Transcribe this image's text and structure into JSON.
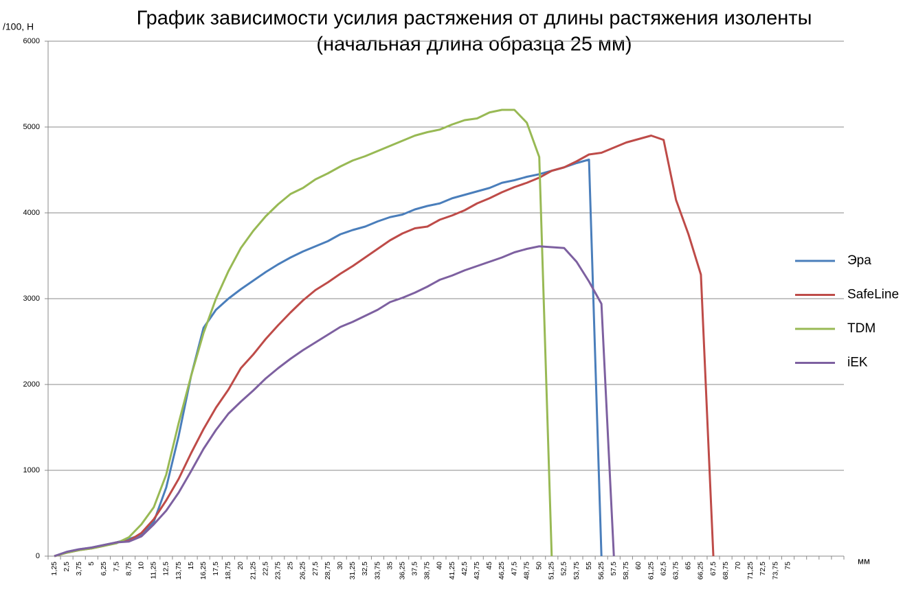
{
  "chart_data": {
    "type": "line",
    "title": [
      "График зависимости усилия растяжения от длины растяжения изоленты",
      "(начальная длина образца 25 мм)"
    ],
    "y_label": "/100, Н",
    "x_label": "мм",
    "categories": [
      "1,25",
      "2,5",
      "3,75",
      "5",
      "6,25",
      "7,5",
      "8,75",
      "10",
      "11,25",
      "12,5",
      "13,75",
      "15",
      "16,25",
      "17,5",
      "18,75",
      "20",
      "21,25",
      "22,5",
      "23,75",
      "25",
      "26,25",
      "27,5",
      "28,75",
      "30",
      "31,25",
      "32,5",
      "33,75",
      "35",
      "36,25",
      "37,5",
      "38,75",
      "40",
      "41,25",
      "42,5",
      "43,75",
      "45",
      "46,25",
      "47,5",
      "48,75",
      "50",
      "51,25",
      "52,5",
      "53,75",
      "55",
      "56,25",
      "57,5",
      "58,75",
      "60",
      "61,25",
      "62,5",
      "63,75",
      "65",
      "66,25",
      "67,5",
      "68,75",
      "70",
      "71,25",
      "72,5",
      "73,75",
      "75",
      null,
      null,
      null,
      null
    ],
    "ylim": [
      0,
      6000
    ],
    "yticks": [
      0,
      1000,
      2000,
      3000,
      4000,
      5000,
      6000
    ],
    "grid": true,
    "legend": "right",
    "series": [
      {
        "name": "Эра",
        "color": "#4a7ebb",
        "values": [
          0,
          50,
          80,
          100,
          130,
          160,
          200,
          250,
          400,
          800,
          1400,
          2100,
          2660,
          2870,
          3000,
          3110,
          3210,
          3310,
          3400,
          3480,
          3550,
          3610,
          3670,
          3750,
          3800,
          3840,
          3900,
          3950,
          3980,
          4040,
          4080,
          4110,
          4170,
          4210,
          4250,
          4290,
          4350,
          4380,
          4420,
          4450,
          4490,
          4530,
          4580,
          4620,
          0,
          null,
          null,
          null,
          null,
          null,
          null,
          null,
          null,
          null,
          null,
          null,
          null,
          null,
          null,
          null,
          null,
          null,
          null,
          null
        ]
      },
      {
        "name": "SafeLine",
        "color": "#be4b48",
        "values": [
          0,
          40,
          70,
          90,
          120,
          160,
          180,
          270,
          430,
          650,
          900,
          1200,
          1480,
          1730,
          1940,
          2190,
          2350,
          2530,
          2690,
          2840,
          2980,
          3100,
          3190,
          3290,
          3380,
          3480,
          3580,
          3680,
          3760,
          3820,
          3840,
          3920,
          3970,
          4030,
          4110,
          4170,
          4240,
          4300,
          4350,
          4410,
          4490,
          4530,
          4600,
          4680,
          4700,
          4760,
          4820,
          4860,
          4900,
          4850,
          4150,
          3750,
          3280,
          0,
          null,
          null,
          null,
          null,
          null,
          null,
          null,
          null,
          null,
          null
        ]
      },
      {
        "name": "TDM",
        "color": "#98b954",
        "values": [
          0,
          40,
          70,
          90,
          120,
          150,
          220,
          370,
          570,
          950,
          1550,
          2100,
          2600,
          3000,
          3320,
          3590,
          3790,
          3960,
          4100,
          4220,
          4290,
          4390,
          4460,
          4540,
          4610,
          4660,
          4720,
          4780,
          4840,
          4900,
          4940,
          4970,
          5030,
          5080,
          5100,
          5170,
          5200,
          5200,
          5050,
          4650,
          0,
          null,
          null,
          null,
          null,
          null,
          null,
          null,
          null,
          null,
          null,
          null,
          null,
          null,
          null,
          null,
          null,
          null,
          null,
          null,
          null,
          null,
          null,
          null
        ]
      },
      {
        "name": "iEK",
        "color": "#7d60a0",
        "values": [
          0,
          50,
          80,
          100,
          130,
          160,
          170,
          230,
          370,
          530,
          740,
          990,
          1250,
          1470,
          1660,
          1800,
          1930,
          2070,
          2190,
          2300,
          2400,
          2490,
          2580,
          2670,
          2730,
          2800,
          2870,
          2960,
          3010,
          3070,
          3140,
          3220,
          3270,
          3330,
          3380,
          3430,
          3480,
          3540,
          3580,
          3610,
          3600,
          3590,
          3430,
          3200,
          2940,
          0,
          null,
          null,
          null,
          null,
          null,
          null,
          null,
          null,
          null,
          null,
          null,
          null,
          null,
          null,
          null,
          null,
          null,
          null
        ]
      }
    ]
  }
}
